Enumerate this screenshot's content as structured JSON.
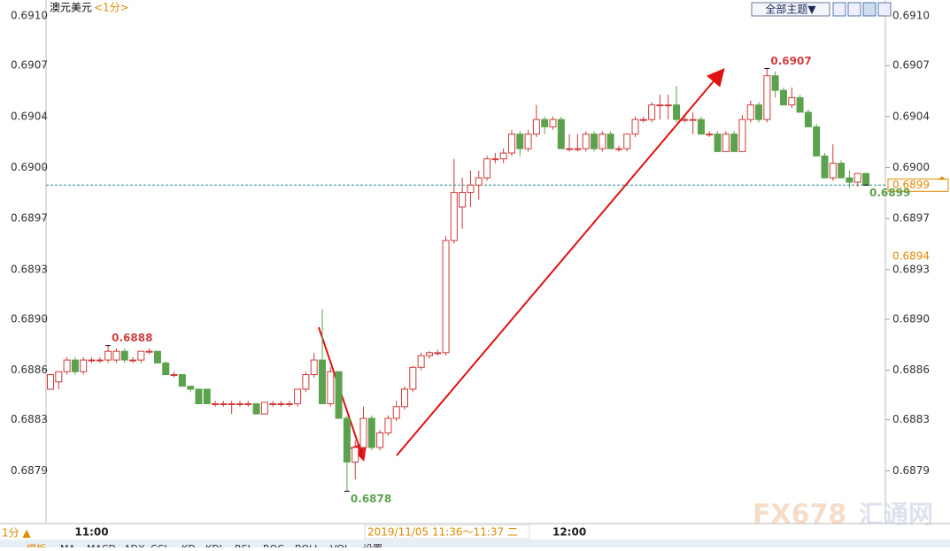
{
  "chart_data": {
    "type": "candlestick",
    "title": "澳元美元",
    "period": "<1分>",
    "categories": [
      null,
      null,
      null,
      null,
      null,
      "11:00",
      null,
      null,
      null,
      null,
      null,
      null,
      null,
      null,
      null,
      null,
      null,
      null,
      null,
      null,
      null,
      null,
      null,
      null,
      null,
      null,
      null,
      null,
      null,
      null,
      null,
      null,
      null,
      null,
      null,
      null,
      null,
      null,
      null,
      null,
      null,
      null,
      null,
      null,
      null,
      null,
      null,
      null,
      null,
      null,
      null,
      null,
      null,
      null,
      null,
      null,
      null,
      null,
      null,
      null,
      null,
      null,
      null,
      "12:00",
      null,
      null,
      null,
      null,
      null,
      null,
      null,
      null,
      null,
      null,
      null,
      null,
      null,
      null,
      null,
      null,
      null,
      null,
      null,
      null,
      null,
      null,
      null,
      null,
      null,
      null,
      null,
      null,
      null,
      null,
      null,
      null,
      null,
      null,
      null,
      null
    ],
    "values": [
      [
        0.6885,
        0.6886,
        0.6885,
        0.6886
      ],
      [
        0.68855,
        0.68862,
        0.6885,
        0.68862
      ],
      [
        0.68862,
        0.68872,
        0.6886,
        0.6887
      ],
      [
        0.6887,
        0.68872,
        0.6886,
        0.68862
      ],
      [
        0.68862,
        0.68872,
        0.6886,
        0.6887
      ],
      [
        0.6887,
        0.68872,
        0.68868,
        0.6887
      ],
      [
        0.6887,
        0.68872,
        0.68868,
        0.6887
      ],
      [
        0.6887,
        0.6888,
        0.68868,
        0.68876
      ],
      [
        0.6887,
        0.68878,
        0.68868,
        0.68876
      ],
      [
        0.68876,
        0.68878,
        0.68868,
        0.6887
      ],
      [
        0.6887,
        0.68872,
        0.68868,
        0.6887
      ],
      [
        0.6887,
        0.68876,
        0.68868,
        0.68876
      ],
      [
        0.68876,
        0.68878,
        0.68874,
        0.68876
      ],
      [
        0.68876,
        0.68876,
        0.68868,
        0.68868
      ],
      [
        0.68868,
        0.68869,
        0.6886,
        0.6886
      ],
      [
        0.6886,
        0.68862,
        0.68858,
        0.6886
      ],
      [
        0.6886,
        0.6886,
        0.68852,
        0.68852
      ],
      [
        0.68852,
        0.68852,
        0.68848,
        0.6885
      ],
      [
        0.6885,
        0.6885,
        0.6884,
        0.6884
      ],
      [
        0.6885,
        0.6885,
        0.6884,
        0.6884
      ],
      [
        0.6884,
        0.68842,
        0.68838,
        0.6884
      ],
      [
        0.6884,
        0.68842,
        0.68838,
        0.6884
      ],
      [
        0.6884,
        0.68842,
        0.68833,
        0.6884
      ],
      [
        0.6884,
        0.68842,
        0.68838,
        0.6884
      ],
      [
        0.6884,
        0.68842,
        0.68838,
        0.6884
      ],
      [
        0.6884,
        0.6884,
        0.68833,
        0.68833
      ],
      [
        0.68833,
        0.68841,
        0.68833,
        0.68841
      ],
      [
        0.6884,
        0.68842,
        0.68838,
        0.6884
      ],
      [
        0.6884,
        0.68842,
        0.68838,
        0.6884
      ],
      [
        0.6884,
        0.68842,
        0.68838,
        0.6884
      ],
      [
        0.6884,
        0.6885,
        0.68838,
        0.6885
      ],
      [
        0.6885,
        0.68862,
        0.68848,
        0.6886
      ],
      [
        0.6886,
        0.68875,
        0.68858,
        0.6887
      ],
      [
        0.6887,
        0.68905,
        0.6884,
        0.6884
      ],
      [
        0.6884,
        0.68865,
        0.68838,
        0.68862
      ],
      [
        0.68862,
        0.68862,
        0.6883,
        0.6883
      ],
      [
        0.6883,
        0.68832,
        0.6878,
        0.688
      ],
      [
        0.688,
        0.68815,
        0.68788,
        0.6881
      ],
      [
        0.6881,
        0.68838,
        0.68805,
        0.6883
      ],
      [
        0.6883,
        0.68832,
        0.68808,
        0.6881
      ],
      [
        0.6881,
        0.68822,
        0.68808,
        0.6882
      ],
      [
        0.6882,
        0.68832,
        0.68818,
        0.6883
      ],
      [
        0.6883,
        0.68842,
        0.68828,
        0.68838
      ],
      [
        0.68838,
        0.68852,
        0.68836,
        0.6885
      ],
      [
        0.6885,
        0.68866,
        0.68848,
        0.68865
      ],
      [
        0.68865,
        0.68875,
        0.68863,
        0.68873
      ],
      [
        0.68873,
        0.68876,
        0.68871,
        0.68875
      ],
      [
        0.68875,
        0.68877,
        0.68873,
        0.68875
      ],
      [
        0.68875,
        0.68955,
        0.68873,
        0.68952
      ],
      [
        0.68952,
        0.69008,
        0.6895,
        0.68985
      ],
      [
        0.68975,
        0.68995,
        0.6896,
        0.68985
      ],
      [
        0.68985,
        0.69,
        0.68975,
        0.6899
      ],
      [
        0.6899,
        0.69,
        0.6898,
        0.68995
      ],
      [
        0.68995,
        0.6901,
        0.68993,
        0.69008
      ],
      [
        0.69008,
        0.69012,
        0.69005,
        0.69008
      ],
      [
        0.69008,
        0.69015,
        0.69005,
        0.69012
      ],
      [
        0.69012,
        0.69028,
        0.6901,
        0.69025
      ],
      [
        0.69025,
        0.69027,
        0.6901,
        0.69015
      ],
      [
        0.69015,
        0.69028,
        0.69013,
        0.69025
      ],
      [
        0.69025,
        0.69045,
        0.69023,
        0.69035
      ],
      [
        0.69035,
        0.69037,
        0.69025,
        0.6903
      ],
      [
        0.6903,
        0.69037,
        0.69028,
        0.69035
      ],
      [
        0.69035,
        0.69037,
        0.69015,
        0.69015
      ],
      [
        0.69015,
        0.69025,
        0.69013,
        0.69015
      ],
      [
        0.69015,
        0.69025,
        0.69013,
        0.69015
      ],
      [
        0.69015,
        0.69027,
        0.69013,
        0.69025
      ],
      [
        0.69025,
        0.69027,
        0.69013,
        0.69015
      ],
      [
        0.69015,
        0.69027,
        0.69013,
        0.69025
      ],
      [
        0.69025,
        0.69027,
        0.69015,
        0.69015
      ],
      [
        0.69015,
        0.69017,
        0.69013,
        0.69015
      ],
      [
        0.69015,
        0.69025,
        0.69013,
        0.69025
      ],
      [
        0.69025,
        0.69037,
        0.69023,
        0.69035
      ],
      [
        0.69035,
        0.69037,
        0.69033,
        0.69035
      ],
      [
        0.69035,
        0.69047,
        0.69033,
        0.69045
      ],
      [
        0.69045,
        0.69052,
        0.69035,
        0.69045
      ],
      [
        0.69045,
        0.69052,
        0.69035,
        0.69045
      ],
      [
        0.69045,
        0.69058,
        0.69033,
        0.69035
      ],
      [
        0.69035,
        0.69037,
        0.69033,
        0.69035
      ],
      [
        0.69035,
        0.6904,
        0.69025,
        0.69035
      ],
      [
        0.69035,
        0.69037,
        0.69025,
        0.69025
      ],
      [
        0.69025,
        0.69027,
        0.69023,
        0.69025
      ],
      [
        0.69025,
        0.69027,
        0.69013,
        0.69013
      ],
      [
        0.69013,
        0.69027,
        0.69013,
        0.69025
      ],
      [
        0.69025,
        0.69027,
        0.69013,
        0.69013
      ],
      [
        0.69013,
        0.69038,
        0.69013,
        0.69035
      ],
      [
        0.69035,
        0.69048,
        0.69033,
        0.69045
      ],
      [
        0.69045,
        0.69047,
        0.69033,
        0.69035
      ],
      [
        0.69035,
        0.6907,
        0.69033,
        0.69065
      ],
      [
        0.69065,
        0.69068,
        0.6905,
        0.69055
      ],
      [
        0.69055,
        0.69057,
        0.69045,
        0.69045
      ],
      [
        0.69045,
        0.69057,
        0.69043,
        0.6905
      ],
      [
        0.6905,
        0.69052,
        0.6904,
        0.6904
      ],
      [
        0.6904,
        0.69042,
        0.6903,
        0.6903
      ],
      [
        0.6903,
        0.69032,
        0.6901,
        0.6901
      ],
      [
        0.6901,
        0.69012,
        0.68995,
        0.68995
      ],
      [
        0.68995,
        0.69018,
        0.68993,
        0.69005
      ],
      [
        0.69005,
        0.69007,
        0.68995,
        0.68995
      ],
      [
        0.68995,
        0.69,
        0.68988,
        0.68992
      ],
      [
        0.68992,
        0.68998,
        0.68989,
        0.68998
      ],
      [
        0.68998,
        0.68998,
        0.6899,
        0.6899
      ]
    ],
    "up_color": "#d03a3a",
    "down_color": "#5ca24e",
    "ylim": [
      0.68759,
      0.69117
    ],
    "yticks": [
      {
        "value": 0.69106,
        "label": "0.6910"
      },
      {
        "value": 0.69072,
        "label": "0.6907"
      },
      {
        "value": 0.69037,
        "label": "0.6904"
      },
      {
        "value": 0.69002,
        "label": "0.6900"
      },
      {
        "value": 0.68967,
        "label": "0.6897"
      },
      {
        "value": 0.68932,
        "label": "0.6893"
      },
      {
        "value": 0.68898,
        "label": "0.6890"
      },
      {
        "value": 0.68863,
        "label": "0.6886"
      },
      {
        "value": 0.68829,
        "label": "0.6883"
      },
      {
        "value": 0.68794,
        "label": "0.6879"
      }
    ],
    "annotations": [
      {
        "value": 0.6888,
        "label": "0.6888",
        "color": "#d04040"
      },
      {
        "value": 0.6907,
        "label": "0.6907",
        "color": "#d04040"
      },
      {
        "value": 0.6878,
        "label": "0.6878",
        "color": "#5ca24e"
      },
      {
        "value": 0.6899,
        "label": "0.6899",
        "color": "#5ca24e"
      }
    ],
    "last_price": {
      "value": 0.6899,
      "label": "0.6899"
    },
    "cursor_price": {
      "value": 0.68941,
      "label": "0.6894"
    }
  },
  "toolbar": {
    "theme_button": "全部主题▼"
  },
  "status_bar": {
    "period": "1分 ▲",
    "time": "2019/11/05 11:36～11:37 二"
  },
  "tabs": [
    "模板",
    "MA",
    "MACD",
    "ADX",
    "CCI",
    "KD",
    "KDJ",
    "RSI",
    "ROC",
    "BOLL",
    "VOL",
    "设置"
  ],
  "watermark": [
    "FX678",
    "汇通网"
  ]
}
